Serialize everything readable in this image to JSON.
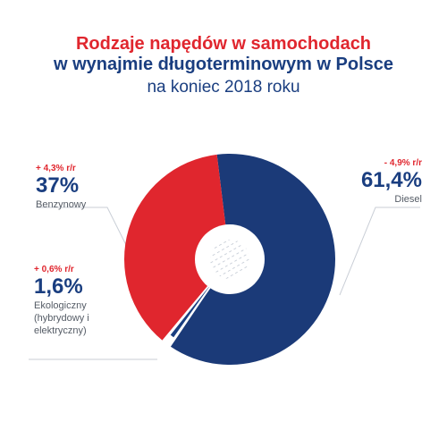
{
  "title": {
    "line1": "Rodzaje napędów w samochodach",
    "line2": "w wynajmie długoterminowym w Polsce",
    "line3": "na koniec 2018 roku"
  },
  "colors": {
    "diesel": "#1b3a78",
    "benzyna": "#e0262e",
    "eko": "#1a3e80",
    "change": "#e0262e"
  },
  "chart_data": {
    "type": "pie",
    "title": "Rodzaje napędów w samochodach w wynajmie długoterminowym w Polsce na koniec 2018 roku",
    "slices": [
      {
        "label": "Diesel",
        "value": 61.4,
        "value_text": "61,4%",
        "change": "- 4,9% r/r",
        "color": "#1b3a78"
      },
      {
        "label": "Ekologiczny (hybrydowy i elektryczny)",
        "value": 1.6,
        "value_text": "1,6%",
        "change": "+ 0,6% r/r",
        "color": "#1a3e80"
      },
      {
        "label": "Benzynowy",
        "value": 37,
        "value_text": "37%",
        "change": "+ 4,3% r/r",
        "color": "#e0262e"
      }
    ]
  },
  "labels": {
    "benzyna": {
      "change": "+ 4,3% r/r",
      "pct": "37%",
      "name": "Benzynowy"
    },
    "eko": {
      "change": "+ 0,6% r/r",
      "pct": "1,6%",
      "name_l1": "Ekologiczny",
      "name_l2": "(hybrydowy i",
      "name_l3": "elektryczny)"
    },
    "diesel": {
      "change": "- 4,9% r/r",
      "pct": "61,4%",
      "name": "Diesel"
    }
  }
}
